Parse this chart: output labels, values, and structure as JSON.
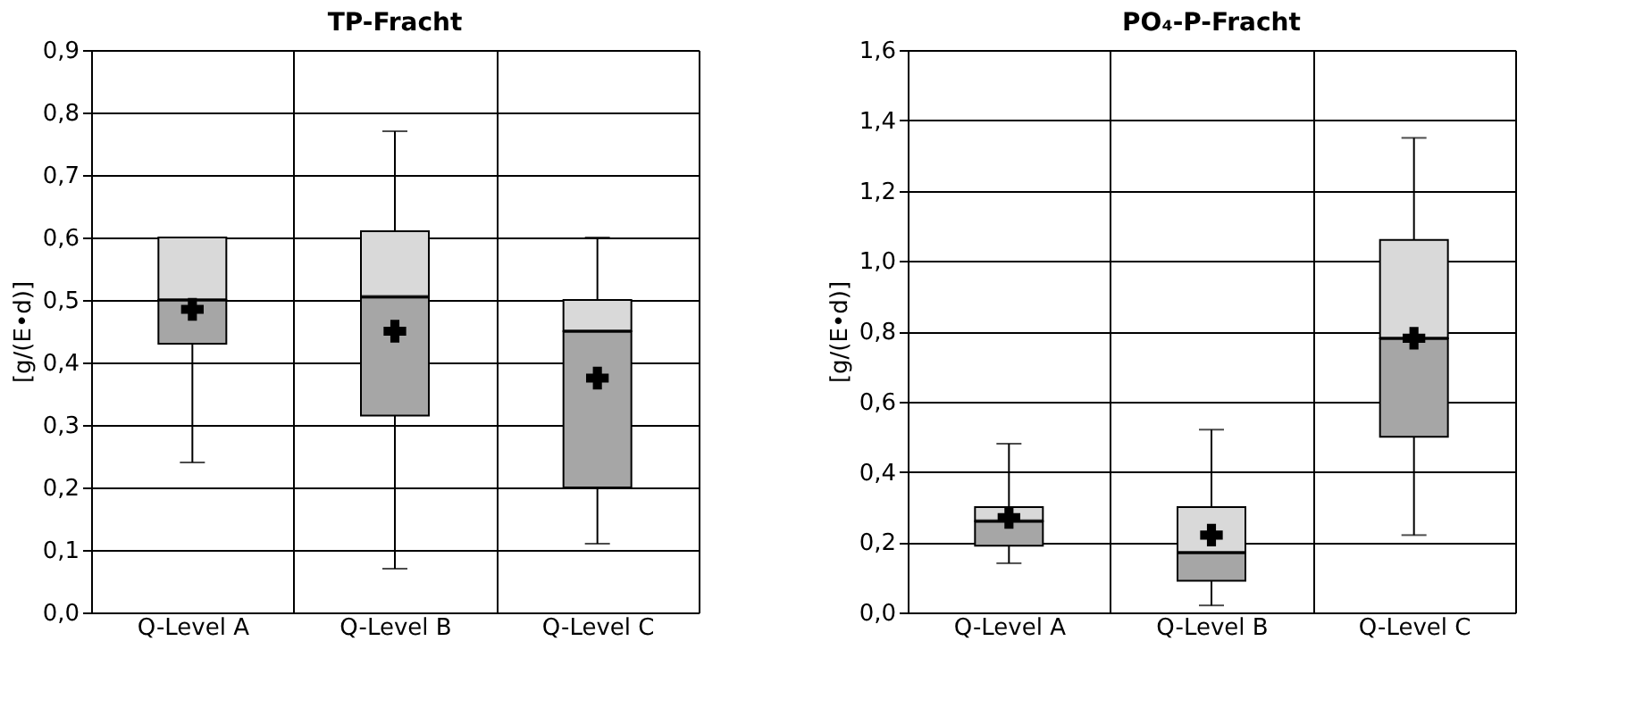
{
  "chart_data": [
    {
      "type": "box",
      "title": "TP-Fracht",
      "ylabel": "[g/(E•d)]",
      "categories": [
        "Q-Level A",
        "Q-Level B",
        "Q-Level C"
      ],
      "grid": true,
      "ylim": [
        0,
        0.9
      ],
      "yticks": [
        {
          "value": 0,
          "label": "0,0"
        },
        {
          "value": 0.1,
          "label": "0,1"
        },
        {
          "value": 0.2,
          "label": "0,2"
        },
        {
          "value": 0.3,
          "label": "0,3"
        },
        {
          "value": 0.4,
          "label": "0,4"
        },
        {
          "value": 0.5,
          "label": "0,5"
        },
        {
          "value": 0.6,
          "label": "0,6"
        },
        {
          "value": 0.7,
          "label": "0,7"
        },
        {
          "value": 0.8,
          "label": "0,8"
        },
        {
          "value": 0.9,
          "label": "0,9"
        }
      ],
      "series": [
        {
          "color": "#a6a6a6",
          "boxes": [
            {
              "low": 0.24,
              "q1": 0.43,
              "median": 0.5,
              "q3": 0.6,
              "high": 0.6,
              "mean": 0.485
            },
            {
              "low": 0.07,
              "q1": 0.315,
              "median": 0.505,
              "q3": 0.61,
              "high": 0.77,
              "mean": 0.45
            },
            {
              "low": 0.11,
              "q1": 0.2,
              "median": 0.45,
              "q3": 0.5,
              "high": 0.6,
              "mean": 0.375
            }
          ]
        }
      ]
    },
    {
      "type": "box",
      "title": "PO₄-P-Fracht",
      "ylabel": "[g/(E•d)]",
      "categories": [
        "Q-Level A",
        "Q-Level B",
        "Q-Level C"
      ],
      "grid": true,
      "ylim": [
        0,
        1.6
      ],
      "yticks": [
        {
          "value": 0,
          "label": "0,0"
        },
        {
          "value": 0.2,
          "label": "0,2"
        },
        {
          "value": 0.4,
          "label": "0,4"
        },
        {
          "value": 0.6,
          "label": "0,6"
        },
        {
          "value": 0.8,
          "label": "0,8"
        },
        {
          "value": 1.0,
          "label": "1,0"
        },
        {
          "value": 1.2,
          "label": "1,2"
        },
        {
          "value": 1.4,
          "label": "1,4"
        },
        {
          "value": 1.6,
          "label": "1,6"
        }
      ],
      "series": [
        {
          "color": "#a6a6a6",
          "boxes": [
            {
              "low": 0.14,
              "q1": 0.19,
              "median": 0.26,
              "q3": 0.3,
              "high": 0.48,
              "mean": 0.27
            },
            {
              "low": 0.02,
              "q1": 0.09,
              "median": 0.17,
              "q3": 0.3,
              "high": 0.52,
              "mean": 0.22
            },
            {
              "low": 0.22,
              "q1": 0.5,
              "median": 0.78,
              "q3": 1.06,
              "high": 1.35,
              "mean": 0.78
            }
          ]
        }
      ]
    }
  ]
}
